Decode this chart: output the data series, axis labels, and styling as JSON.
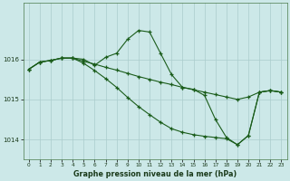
{
  "title": "Graphe pression niveau de la mer (hPa)",
  "bg_color": "#cce8e8",
  "grid_color": "#aacccc",
  "line_color": "#1a5c1a",
  "marker": "+",
  "x_ticks": [
    0,
    1,
    2,
    3,
    4,
    5,
    6,
    7,
    8,
    9,
    10,
    11,
    12,
    13,
    14,
    15,
    16,
    17,
    18,
    19,
    20,
    21,
    22,
    23
  ],
  "ylim": [
    1013.5,
    1017.4
  ],
  "yticks": [
    1014,
    1015,
    1016
  ],
  "series": [
    [
      1015.75,
      1015.93,
      1015.97,
      1016.03,
      1016.03,
      1016.0,
      1015.85,
      1016.05,
      1016.15,
      1016.5,
      1016.72,
      1016.68,
      1016.15,
      1015.62,
      1015.3,
      1015.25,
      1015.1,
      1014.5,
      1014.05,
      1013.87,
      1014.1,
      1015.18,
      1015.22,
      1015.18
    ],
    [
      1015.75,
      1015.93,
      1015.97,
      1016.03,
      1016.03,
      1015.95,
      1015.88,
      1015.8,
      1015.73,
      1015.65,
      1015.57,
      1015.5,
      1015.43,
      1015.37,
      1015.3,
      1015.24,
      1015.18,
      1015.12,
      1015.06,
      1015.0,
      1015.06,
      1015.18,
      1015.22,
      1015.18
    ],
    [
      1015.75,
      1015.93,
      1015.97,
      1016.03,
      1016.03,
      1015.9,
      1015.72,
      1015.52,
      1015.3,
      1015.05,
      1014.82,
      1014.62,
      1014.43,
      1014.27,
      1014.18,
      1014.12,
      1014.08,
      1014.05,
      1014.02,
      1013.87,
      1014.1,
      1015.18,
      1015.22,
      1015.18
    ]
  ]
}
